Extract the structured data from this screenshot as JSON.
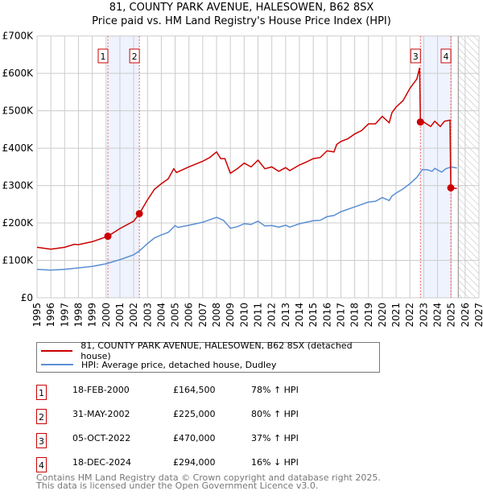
{
  "chart_data": {
    "type": "line",
    "title": "81, COUNTY PARK AVENUE, HALESOWEN, B62 8SX",
    "subtitle": "Price paid vs. HM Land Registry's House Price Index (HPI)",
    "xlim": [
      1995,
      2027
    ],
    "ylim": [
      0,
      700000
    ],
    "x_ticks": [
      "1995",
      "1996",
      "1997",
      "1998",
      "1999",
      "2000",
      "2001",
      "2002",
      "2003",
      "2004",
      "2005",
      "2006",
      "2007",
      "2008",
      "2009",
      "2010",
      "2011",
      "2012",
      "2013",
      "2014",
      "2015",
      "2016",
      "2017",
      "2018",
      "2019",
      "2020",
      "2021",
      "2022",
      "2023",
      "2024",
      "2025",
      "2026",
      "2027"
    ],
    "y_ticks": [
      {
        "v": 0,
        "label": "£0"
      },
      {
        "v": 100000,
        "label": "£100K"
      },
      {
        "v": 200000,
        "label": "£200K"
      },
      {
        "v": 300000,
        "label": "£300K"
      },
      {
        "v": 400000,
        "label": "£400K"
      },
      {
        "v": 500000,
        "label": "£500K"
      },
      {
        "v": 600000,
        "label": "£600K"
      },
      {
        "v": 700000,
        "label": "£700K"
      }
    ],
    "grid": true,
    "forecast_from": 2025.5,
    "shaded": [
      [
        2000.13,
        2002.41
      ],
      [
        2022.76,
        2024.96
      ]
    ],
    "series": [
      {
        "name": "81, COUNTY PARK AVENUE, HALESOWEN, B62 8SX (detached house)",
        "color": "#cc0000",
        "x": [
          1995,
          1996,
          1997,
          1997.7,
          1998,
          1999,
          2000.13,
          2001,
          2002,
          2002.41,
          2003,
          2003.5,
          2004,
          2004.5,
          2004.9,
          2005.1,
          2006,
          2007,
          2007.5,
          2008,
          2008.3,
          2008.6,
          2009,
          2009.5,
          2010,
          2010.5,
          2011,
          2011.5,
          2012,
          2012.5,
          2013,
          2013.3,
          2014,
          2014.5,
          2015,
          2015.5,
          2016,
          2016.5,
          2016.7,
          2017,
          2017.5,
          2018,
          2018.5,
          2019,
          2019.5,
          2020,
          2020.5,
          2020.7,
          2021,
          2021.5,
          2022,
          2022.5,
          2022.7,
          2022.76,
          2023,
          2023.5,
          2023.8,
          2024.2,
          2024.5,
          2024.9,
          2024.96,
          2025.4
        ],
        "y": [
          135000,
          130000,
          135000,
          143000,
          142000,
          150000,
          164500,
          185000,
          205000,
          225000,
          262000,
          290000,
          305000,
          318000,
          345000,
          335000,
          350000,
          365000,
          375000,
          390000,
          372000,
          372000,
          333000,
          345000,
          360000,
          350000,
          368000,
          345000,
          350000,
          338000,
          348000,
          340000,
          355000,
          363000,
          372000,
          375000,
          393000,
          390000,
          410000,
          418000,
          425000,
          438000,
          447000,
          465000,
          465000,
          485000,
          468000,
          495000,
          510000,
          527000,
          560000,
          585000,
          615000,
          470000,
          470000,
          458000,
          472000,
          458000,
          472000,
          475000,
          294000,
          292000
        ]
      },
      {
        "name": "HPI: Average price, detached house, Dudley",
        "color": "#5b8fd4",
        "x": [
          1995,
          1996,
          1997,
          1998,
          1999,
          2000,
          2001,
          2002,
          2002.4,
          2003,
          2003.5,
          2004,
          2004.5,
          2005,
          2005.2,
          2006,
          2007,
          2008,
          2008.5,
          2009,
          2009.5,
          2010,
          2010.5,
          2011,
          2011.5,
          2012,
          2012.5,
          2013,
          2013.3,
          2014,
          2015,
          2015.5,
          2016,
          2016.5,
          2017,
          2018,
          2019,
          2019.5,
          2020,
          2020.5,
          2020.7,
          2021,
          2021.5,
          2022,
          2022.5,
          2022.9,
          2023.3,
          2023.6,
          2023.8,
          2024.3,
          2024.6,
          2025,
          2025.4
        ],
        "y": [
          76000,
          74000,
          76000,
          80000,
          84000,
          91000,
          102000,
          115000,
          125000,
          145000,
          160000,
          168000,
          175000,
          193000,
          188000,
          194000,
          202000,
          215000,
          207000,
          186000,
          190000,
          198000,
          196000,
          205000,
          192000,
          193000,
          189000,
          194000,
          189000,
          198000,
          206000,
          207000,
          217000,
          220000,
          230000,
          243000,
          256000,
          258000,
          268000,
          260000,
          272000,
          280000,
          291000,
          305000,
          322000,
          343000,
          342000,
          338000,
          346000,
          336000,
          345000,
          350000,
          347000
        ]
      }
    ],
    "transactions": [
      {
        "num": "1",
        "x": 2000.13,
        "date": "18-FEB-2000",
        "price": "£164,500",
        "price_value": 164500,
        "hpi": "78% ↑ HPI"
      },
      {
        "num": "2",
        "x": 2002.41,
        "date": "31-MAY-2002",
        "price": "£225,000",
        "price_value": 225000,
        "hpi": "80% ↑ HPI"
      },
      {
        "num": "3",
        "x": 2022.76,
        "date": "05-OCT-2022",
        "price": "£470,000",
        "price_value": 470000,
        "hpi": "37% ↑ HPI"
      },
      {
        "num": "4",
        "x": 2024.96,
        "date": "18-DEC-2024",
        "price": "£294,000",
        "price_value": 294000,
        "hpi": "16% ↓ HPI"
      }
    ]
  },
  "footer": {
    "line1": "Contains HM Land Registry data © Crown copyright and database right 2025.",
    "line2": "This data is licensed under the Open Government Licence v3.0."
  }
}
